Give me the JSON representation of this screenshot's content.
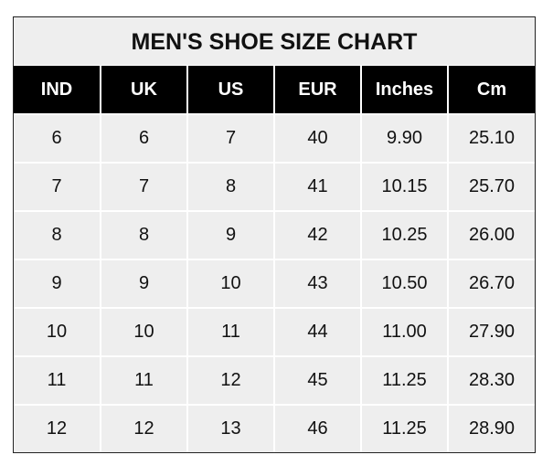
{
  "title": "MEN'S SHOE SIZE CHART",
  "columns": [
    "IND",
    "UK",
    "US",
    "EUR",
    "Inches",
    "Cm"
  ],
  "rows": [
    [
      "6",
      "6",
      "7",
      "40",
      "9.90",
      "25.10"
    ],
    [
      "7",
      "7",
      "8",
      "41",
      "10.15",
      "25.70"
    ],
    [
      "8",
      "8",
      "9",
      "42",
      "10.25",
      "26.00"
    ],
    [
      "9",
      "9",
      "10",
      "43",
      "10.50",
      "26.70"
    ],
    [
      "10",
      "10",
      "11",
      "44",
      "11.00",
      "27.90"
    ],
    [
      "11",
      "11",
      "12",
      "45",
      "11.25",
      "28.30"
    ],
    [
      "12",
      "12",
      "13",
      "46",
      "11.25",
      "28.90"
    ]
  ],
  "colors": {
    "header_bg": "#000000",
    "cell_bg": "#eeeeee",
    "grid": "#ffffff"
  }
}
